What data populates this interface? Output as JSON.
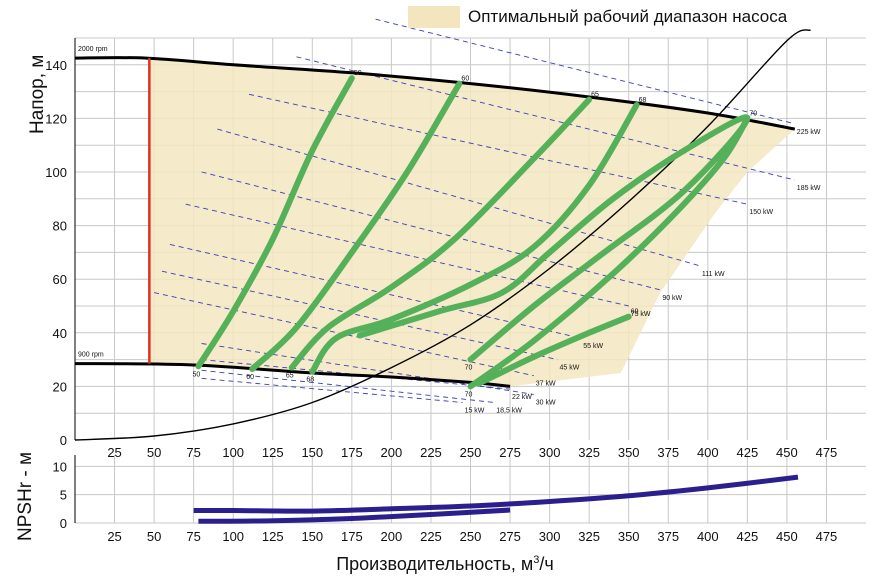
{
  "legend": {
    "label": "Оптимальный рабочий диапазон насоса",
    "color": "#f3e6bf"
  },
  "labels": {
    "ylabel_main": "Напор, м",
    "ylabel_npsh": "NPSHr - м",
    "xlabel": "Производительность, м",
    "xlabel_sup": "3",
    "xlabel_tail": "/ч"
  },
  "chart_data": [
    {
      "type": "line",
      "xlim": [
        0,
        500
      ],
      "ylim": [
        0,
        150
      ],
      "x_ticks": [
        25,
        50,
        75,
        100,
        125,
        150,
        175,
        200,
        225,
        250,
        275,
        300,
        325,
        350,
        375,
        400,
        425,
        450,
        475
      ],
      "y_ticks": [
        0,
        20,
        40,
        60,
        80,
        100,
        120,
        140
      ],
      "grid": true,
      "speed_curves": [
        {
          "name": "2000 rpm",
          "points": [
            [
              0,
              142.5
            ],
            [
              45,
              142.5
            ],
            [
              100,
              140
            ],
            [
              175,
              137
            ],
            [
              250,
              133
            ],
            [
              325,
              128
            ],
            [
              400,
              122
            ],
            [
              455,
              116
            ]
          ]
        },
        {
          "name": "900 rpm",
          "points": [
            [
              0,
              28.5
            ],
            [
              75,
              28
            ],
            [
              150,
              25
            ],
            [
              200,
              23.5
            ],
            [
              250,
              21.5
            ],
            [
              275,
              20
            ]
          ]
        }
      ],
      "min_flow_line": {
        "x": 47,
        "y": [
          28.5,
          142.5
        ],
        "color": "#e0301e"
      },
      "optimal_area": [
        [
          47,
          142.5
        ],
        [
          100,
          140
        ],
        [
          175,
          137
        ],
        [
          250,
          133
        ],
        [
          325,
          128
        ],
        [
          400,
          122
        ],
        [
          440,
          118
        ],
        [
          455,
          116
        ],
        [
          425,
          100
        ],
        [
          405,
          85
        ],
        [
          370,
          55
        ],
        [
          345,
          25
        ],
        [
          275,
          20
        ],
        [
          150,
          25
        ],
        [
          75,
          28
        ],
        [
          47,
          28.5
        ]
      ],
      "system_curve": [
        [
          0,
          0
        ],
        [
          50,
          1.5
        ],
        [
          100,
          6
        ],
        [
          150,
          14
        ],
        [
          200,
          27
        ],
        [
          250,
          43
        ],
        [
          300,
          64
        ],
        [
          350,
          89
        ],
        [
          400,
          117
        ],
        [
          450,
          149
        ],
        [
          465,
          153
        ]
      ],
      "efficiency_curves": [
        {
          "label_top": "50",
          "label_bottom": "50",
          "points": [
            [
              78,
              27.5
            ],
            [
              100,
              48
            ],
            [
              125,
              75
            ],
            [
              150,
              108
            ],
            [
              175,
              135
            ]
          ]
        },
        {
          "label_top": "60",
          "label_bottom": "60",
          "points": [
            [
              112,
              26.5
            ],
            [
              140,
              42
            ],
            [
              175,
              70
            ],
            [
              210,
              100
            ],
            [
              243,
              133
            ]
          ]
        },
        {
          "label_top": "65",
          "label_bottom": "65",
          "points": [
            [
              137,
              27
            ],
            [
              160,
              42
            ],
            [
              200,
              57
            ],
            [
              240,
              75
            ],
            [
              290,
              105
            ],
            [
              325,
              127
            ]
          ]
        },
        {
          "label_top": "68",
          "label_bottom": "68",
          "points": [
            [
              150,
              25.5
            ],
            [
              165,
              38
            ],
            [
              200,
              45
            ],
            [
              250,
              58
            ],
            [
              290,
              72
            ],
            [
              325,
              95
            ],
            [
              355,
              125
            ]
          ]
        },
        {
          "label_top": "70",
          "label_bottom": "70",
          "points": [
            [
              180,
              39
            ],
            [
              230,
              48
            ],
            [
              270,
              55
            ],
            [
              300,
              70
            ],
            [
              340,
              90
            ],
            [
              385,
              108
            ],
            [
              425,
              120
            ],
            [
              385,
              93
            ],
            [
              330,
              68
            ],
            [
              290,
              50
            ],
            [
              250,
              30
            ]
          ]
        },
        {
          "label_top": "",
          "label_bottom": "70",
          "points": [
            [
              250,
              20
            ],
            [
              290,
              37
            ],
            [
              340,
              62
            ],
            [
              380,
              85
            ],
            [
              410,
              105
            ],
            [
              425,
              120
            ]
          ]
        },
        {
          "label_top": "69",
          "label_bottom": "",
          "points": [
            [
              255,
              21
            ],
            [
              290,
              31
            ],
            [
              325,
              40
            ],
            [
              350,
              46
            ]
          ]
        }
      ],
      "power_lines": [
        {
          "label": "225 kW",
          "points": [
            [
              190,
              157
            ],
            [
              455,
              118
            ]
          ]
        },
        {
          "label": "185 kW",
          "points": [
            [
              140,
              143
            ],
            [
              455,
              97
            ]
          ]
        },
        {
          "label": "150 kW",
          "points": [
            [
              110,
              129
            ],
            [
              425,
              88
            ]
          ]
        },
        {
          "label": "111 kW",
          "points": [
            [
              90,
              116
            ],
            [
              395,
              65
            ]
          ]
        },
        {
          "label": "90 kW",
          "points": [
            [
              80,
              100
            ],
            [
              370,
              56
            ]
          ]
        },
        {
          "label": "75 kW",
          "points": [
            [
              70,
              88
            ],
            [
              350,
              50
            ]
          ]
        },
        {
          "label": "55 kW",
          "points": [
            [
              60,
              73
            ],
            [
              320,
              38
            ]
          ]
        },
        {
          "label": "45 kW",
          "points": [
            [
              55,
              63
            ],
            [
              305,
              30
            ]
          ]
        },
        {
          "label": "37 kW",
          "points": [
            [
              50,
              55
            ],
            [
              290,
              24
            ]
          ]
        },
        {
          "label": "30 kW",
          "points": [
            [
              80,
              36
            ],
            [
              290,
              17
            ]
          ]
        },
        {
          "label": "22 kW",
          "points": [
            [
              80,
              30
            ],
            [
              275,
              19
            ]
          ]
        },
        {
          "label": "18,5 kW",
          "points": [
            [
              80,
              26
            ],
            [
              265,
              14
            ]
          ]
        },
        {
          "label": "15 kW",
          "points": [
            [
              80,
              23
            ],
            [
              245,
              14
            ]
          ]
        }
      ],
      "colors": {
        "performance": "#000000",
        "efficiency": "#55b05a",
        "power": "#3b3fb8",
        "system": "#000000",
        "grid": "#c8c8c8"
      }
    },
    {
      "type": "line",
      "xlim": [
        0,
        500
      ],
      "ylim": [
        0,
        12
      ],
      "y_ticks": [
        0,
        5,
        10
      ],
      "grid": true,
      "series": [
        {
          "points": [
            [
              75,
              2.2
            ],
            [
              100,
              2.2
            ],
            [
              150,
              2.1
            ],
            [
              200,
              2.5
            ],
            [
              250,
              3.0
            ],
            [
              300,
              3.8
            ],
            [
              350,
              4.8
            ],
            [
              400,
              6.2
            ],
            [
              457,
              8.1
            ]
          ]
        },
        {
          "points": [
            [
              78,
              0.3
            ],
            [
              125,
              0.4
            ],
            [
              175,
              0.8
            ],
            [
              225,
              1.5
            ],
            [
              275,
              2.3
            ]
          ]
        }
      ],
      "color": "#2b1f8e"
    }
  ]
}
